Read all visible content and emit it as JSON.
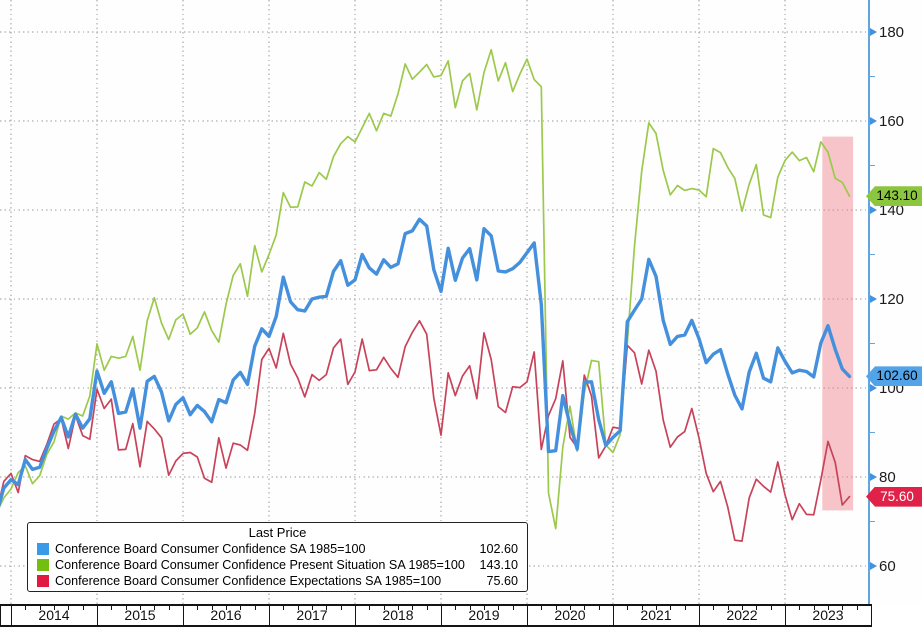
{
  "legend": {
    "title": "Last Price",
    "rows": [
      {
        "label": "Conference Board Consumer Confidence SA 1985=100",
        "value": "102.60",
        "swatch": "#3b9ae8"
      },
      {
        "label": "Conference Board Consumer Confidence Present Situation SA 1985=100",
        "value": "143.10",
        "swatch": "#72bf12"
      },
      {
        "label": "Conference Board Consumer Confidence Expectations SA 1985=100",
        "value": "75.60",
        "swatch": "#e11a3f"
      }
    ]
  },
  "axes": {
    "y_major_ticks": [
      180,
      160,
      140,
      120,
      100,
      80,
      60
    ],
    "y_minor_ticks": [
      170,
      150,
      130,
      110,
      90,
      70
    ],
    "x_year_labels": [
      "2014",
      "2015",
      "2016",
      "2017",
      "2018",
      "2019",
      "2020",
      "2021",
      "2022",
      "2023"
    ]
  },
  "badges": [
    {
      "value": "143.10",
      "bg": "#8cc63e",
      "text": "#000",
      "series_value": 143.1
    },
    {
      "value": "102.60",
      "bg": "#52a3e8",
      "text": "#000",
      "series_value": 102.6
    },
    {
      "value": "75.60",
      "bg": "#e02248",
      "text": "#fff",
      "series_value": 75.6
    }
  ],
  "chart_data": {
    "type": "line",
    "title": "Last Price",
    "frequency": "monthly",
    "x_start": "2013-11",
    "x_end": "2023-10",
    "x_start_month_offset": -2,
    "x_tick_labels": [
      "2014",
      "2015",
      "2016",
      "2017",
      "2018",
      "2019",
      "2020",
      "2021",
      "2022",
      "2023"
    ],
    "ylim": [
      60,
      180
    ],
    "grid": "dotted, yearly vertical and every-20 horizontal",
    "legend_position": "bottom-left box",
    "highlight_band": {
      "from": "2023-07",
      "to": "2023-10",
      "x_from_month_offset": 113.2,
      "x_to_month_offset": 117.5,
      "value_low": 72.5,
      "value_high": 156.5,
      "color": "rgba(240,128,138,0.45)"
    },
    "series": [
      {
        "name": "Conference Board Consumer Confidence SA 1985=100",
        "color": "#4490dd",
        "line_width": 3.4,
        "last_display": "102.60",
        "last": 102.6,
        "values": [
          72.0,
          77.5,
          79.4,
          78.3,
          83.9,
          81.7,
          82.2,
          86.4,
          90.3,
          93.4,
          89.0,
          94.1,
          91.0,
          93.1,
          103.8,
          98.8,
          101.4,
          94.3,
          94.6,
          99.8,
          91.0,
          101.5,
          102.6,
          99.1,
          92.6,
          96.3,
          97.8,
          94.0,
          96.1,
          94.7,
          92.4,
          97.4,
          96.7,
          101.8,
          103.5,
          100.8,
          109.4,
          113.3,
          111.6,
          116.1,
          124.9,
          119.4,
          117.6,
          117.3,
          120.0,
          120.4,
          120.6,
          126.2,
          128.6,
          123.1,
          124.3,
          130.0,
          127.0,
          125.6,
          128.8,
          127.1,
          127.9,
          134.7,
          135.3,
          137.9,
          136.4,
          126.6,
          121.7,
          131.4,
          124.2,
          129.2,
          131.3,
          124.3,
          135.8,
          134.2,
          126.3,
          126.1,
          126.8,
          128.2,
          130.4,
          132.6,
          118.8,
          85.7,
          85.9,
          98.3,
          91.7,
          86.3,
          101.3,
          101.4,
          92.9,
          87.1,
          88.9,
          90.4,
          114.9,
          117.5,
          120.0,
          128.9,
          125.1,
          115.2,
          109.8,
          111.6,
          111.9,
          115.2,
          111.1,
          105.7,
          107.6,
          108.6,
          103.2,
          98.4,
          95.3,
          103.6,
          107.8,
          102.2,
          101.4,
          109.0,
          106.0,
          103.4,
          104.0,
          103.7,
          102.5,
          110.1,
          114.0,
          108.7,
          104.3,
          102.6
        ]
      },
      {
        "name": "Conference Board Consumer Confidence Present Situation SA 1985=100",
        "color": "#9cc94c",
        "line_width": 1.7,
        "last_display": "143.10",
        "last": 143.1,
        "values": [
          72.0,
          75.3,
          77.3,
          81.0,
          82.5,
          78.5,
          80.3,
          85.1,
          87.9,
          93.7,
          93.0,
          94.4,
          93.7,
          98.2,
          109.9,
          104.0,
          107.1,
          106.7,
          107.1,
          111.6,
          104.0,
          115.1,
          120.3,
          114.6,
          110.9,
          115.3,
          116.6,
          112.1,
          113.5,
          117.1,
          112.9,
          110.3,
          118.8,
          125.3,
          127.9,
          120.6,
          132.0,
          126.1,
          130.0,
          134.4,
          143.9,
          140.6,
          140.7,
          146.3,
          145.4,
          148.4,
          146.9,
          152.0,
          154.9,
          156.5,
          155.3,
          158.5,
          161.7,
          157.8,
          161.7,
          161.1,
          166.1,
          172.8,
          169.4,
          171.0,
          172.7,
          169.9,
          170.2,
          173.5,
          163.0,
          169.0,
          170.7,
          162.5,
          170.9,
          176.0,
          169.0,
          173.1,
          166.6,
          170.5,
          173.9,
          169.3,
          167.7,
          76.4,
          68.4,
          86.7,
          95.9,
          85.8,
          98.9,
          106.2,
          105.9,
          87.2,
          85.5,
          89.6,
          110.1,
          131.9,
          148.7,
          159.6,
          157.2,
          148.9,
          143.4,
          145.5,
          144.4,
          144.8,
          144.5,
          143.0,
          153.8,
          152.9,
          149.6,
          147.1,
          139.7,
          145.8,
          150.2,
          138.9,
          138.3,
          147.4,
          151.1,
          153.0,
          151.1,
          151.8,
          148.6,
          155.3,
          153.0,
          147.1,
          146.2,
          143.1
        ]
      },
      {
        "name": "Conference Board Consumer Confidence Expectations SA 1985=100",
        "color": "#c8435a",
        "line_width": 1.7,
        "last_display": "75.60",
        "last": 75.6,
        "values": [
          72.2,
          79.0,
          80.8,
          76.5,
          84.8,
          83.9,
          83.5,
          87.3,
          91.9,
          93.1,
          86.4,
          93.8,
          89.3,
          88.5,
          99.7,
          95.4,
          97.5,
          86.1,
          86.2,
          92.0,
          82.3,
          92.5,
          90.8,
          88.8,
          80.4,
          83.6,
          85.3,
          85.5,
          84.5,
          79.7,
          78.8,
          88.8,
          82.0,
          87.6,
          87.2,
          86.0,
          94.3,
          106.4,
          108.9,
          104.5,
          112.3,
          105.4,
          102.3,
          98.0,
          103.0,
          101.7,
          103.0,
          109.0,
          111.0,
          100.8,
          103.6,
          111.0,
          103.9,
          104.1,
          106.9,
          104.4,
          102.4,
          109.3,
          112.5,
          115.1,
          112.1,
          97.7,
          89.4,
          103.4,
          98.3,
          102.7,
          105.0,
          97.6,
          112.4,
          106.4,
          95.8,
          94.5,
          100.3,
          100.1,
          101.4,
          108.1,
          86.2,
          93.8,
          97.6,
          106.1,
          88.9,
          86.6,
          102.9,
          98.2,
          84.3,
          87.0,
          91.2,
          90.9,
          109.6,
          107.9,
          100.9,
          108.5,
          103.8,
          92.8,
          86.7,
          89.0,
          90.2,
          95.4,
          88.8,
          80.8,
          76.7,
          79.0,
          73.3,
          65.8,
          65.6,
          75.3,
          79.5,
          77.9,
          76.6,
          83.4,
          76.0,
          70.4,
          74.0,
          71.6,
          71.5,
          79.3,
          88.0,
          83.3,
          73.7,
          75.6
        ]
      }
    ]
  }
}
